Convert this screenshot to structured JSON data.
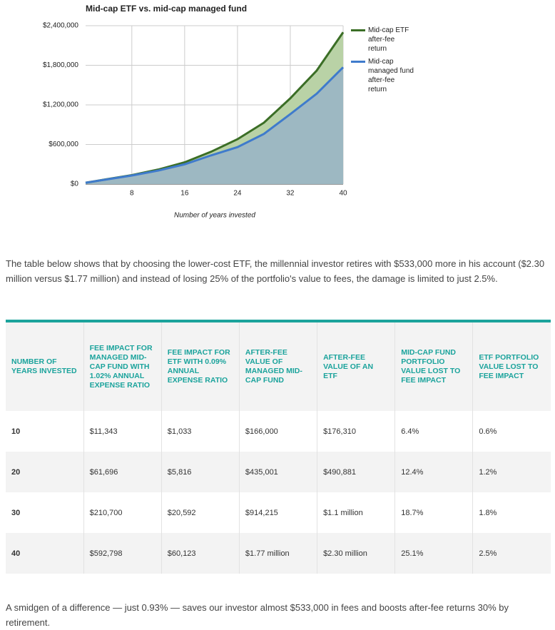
{
  "chart_data": {
    "type": "area",
    "title": "Mid-cap ETF vs. mid-cap managed fund",
    "x_label": "Number of years invested",
    "x": [
      1,
      4,
      8,
      12,
      16,
      20,
      24,
      28,
      32,
      36,
      40
    ],
    "xlim": [
      1,
      40
    ],
    "xticks": [
      8,
      16,
      24,
      32,
      40
    ],
    "ylim": [
      0,
      2400000
    ],
    "yticks": [
      {
        "value": 0,
        "label": "$0"
      },
      {
        "value": 600000,
        "label": "$600,000"
      },
      {
        "value": 1200000,
        "label": "$1,200,000"
      },
      {
        "value": 1800000,
        "label": "$1,800,000"
      },
      {
        "value": 2400000,
        "label": "$2,400,000"
      }
    ],
    "grid": true,
    "series": [
      {
        "name": "Mid-cap ETF after-fee return",
        "color": "#3b6e26",
        "fill": "#b9d2a6",
        "values": [
          20000,
          70000,
          135000,
          220000,
          330000,
          490000,
          680000,
          930000,
          1300000,
          1720000,
          2300000
        ]
      },
      {
        "name": "Mid-cap managed fund after-fee return",
        "color": "#3f7bcc",
        "fill": "#9db8c2",
        "values": [
          20000,
          68000,
          130000,
          205000,
          300000,
          435000,
          560000,
          760000,
          1060000,
          1370000,
          1770000
        ]
      }
    ]
  },
  "paragraphs": [
    "The table below shows that by choosing the lower-cost ETF, the millennial investor retires with $533,000 more in his account ($2.30 million versus $1.77 million) and instead of losing 25% of the portfolio's value to fees, the damage is limited to just 2.5%.",
    "A smidgen of a difference — just 0.93% — saves our investor almost $533,000 in fees and boosts after-fee returns 30% by retirement."
  ],
  "table": {
    "header": [
      "NUMBER OF YEARS INVESTED",
      "FEE IMPACT FOR MANAGED MID-CAP FUND WITH 1.02% ANNUAL EXPENSE RATIO",
      "FEE IMPACT FOR ETF WITH 0.09% ANNUAL EXPENSE RATIO",
      "AFTER-FEE VALUE OF MANAGED MID-CAP FUND",
      "AFTER-FEE VALUE OF AN ETF",
      "MID-CAP FUND PORTFOLIO VALUE LOST TO FEE IMPACT",
      "ETF PORTFOLIO VALUE LOST TO FEE IMPACT"
    ],
    "rows": [
      [
        "10",
        "$11,343",
        "$1,033",
        "$166,000",
        "$176,310",
        "6.4%",
        "0.6%"
      ],
      [
        "20",
        "$61,696",
        "$5,816",
        "$435,001",
        "$490,881",
        "12.4%",
        "1.2%"
      ],
      [
        "30",
        "$210,700",
        "$20,592",
        "$914,215",
        "$1.1 million",
        "18.7%",
        "1.8%"
      ],
      [
        "40",
        "$592,798",
        "$60,123",
        "$1.77 million",
        "$2.30 million",
        "25.1%",
        "2.5%"
      ]
    ]
  }
}
